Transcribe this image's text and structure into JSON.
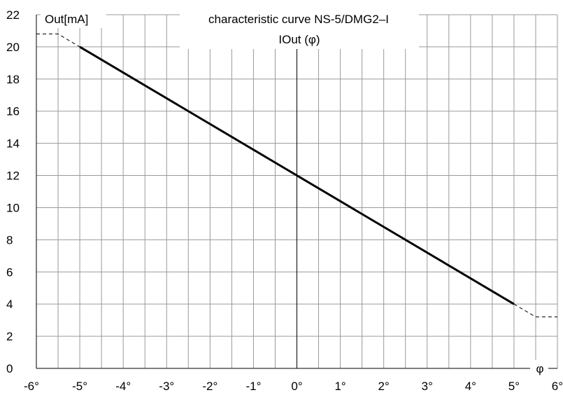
{
  "chart_data": {
    "type": "line",
    "title": "characteristic curve NS-5/DMG2–I",
    "subtitle": "IOut (φ)",
    "ylabel": "Out[mA]",
    "xlabel": "φ",
    "xlim": [
      -6,
      6
    ],
    "ylim": [
      0,
      22
    ],
    "x_ticks": [
      -6,
      -5,
      -4,
      -3,
      -2,
      -1,
      0,
      1,
      2,
      3,
      4,
      5,
      6
    ],
    "x_tick_labels": [
      "-6°",
      "-5°",
      "-4°",
      "-3°",
      "-2°",
      "-1°",
      "0°",
      "1°",
      "2°",
      "3°",
      "4°",
      "5°",
      "6°"
    ],
    "y_ticks": [
      0,
      2,
      4,
      6,
      8,
      10,
      12,
      14,
      16,
      18,
      20,
      22
    ],
    "y_tick_labels": [
      "0",
      "2",
      "4",
      "6",
      "8",
      "10",
      "12",
      "14",
      "16",
      "18",
      "20",
      "22"
    ],
    "grid": true,
    "x_minor_step": 0.5,
    "series": [
      {
        "style": "solid",
        "x": [
          -5,
          5
        ],
        "y": [
          20,
          4
        ]
      },
      {
        "style": "dashed",
        "x": [
          -6,
          -5.5,
          -5
        ],
        "y": [
          20.8,
          20.8,
          20
        ]
      },
      {
        "style": "dashed",
        "x": [
          5,
          5.5,
          6
        ],
        "y": [
          4,
          3.2,
          3.2
        ]
      }
    ]
  }
}
